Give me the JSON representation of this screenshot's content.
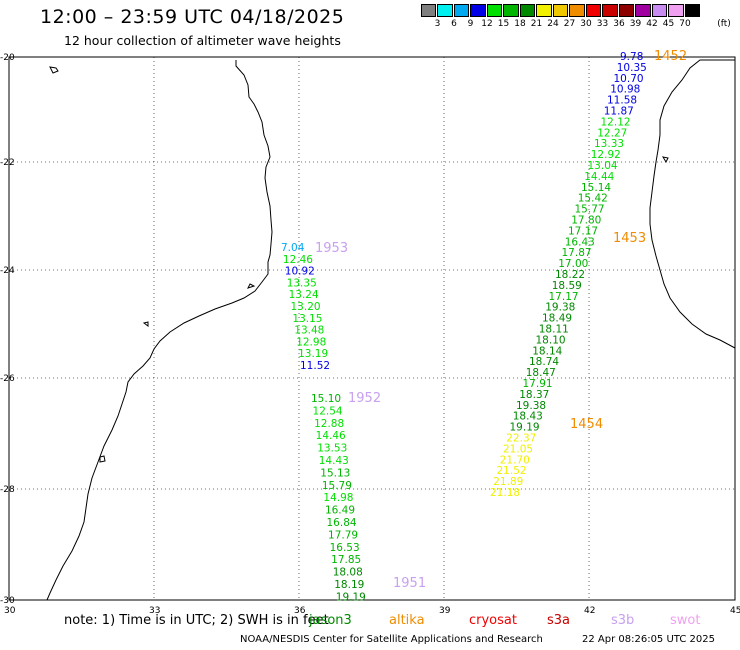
{
  "header": {
    "title": "12:00 – 23:59 UTC 04/18/2025",
    "subtitle": "12 hour collection of altimeter wave heights"
  },
  "legend": {
    "colors": [
      "#7f7f7f",
      "#00f0f0",
      "#00a8f0",
      "#0000e6",
      "#00e000",
      "#00b400",
      "#008800",
      "#f0f000",
      "#f0c800",
      "#f08c00",
      "#f00000",
      "#c80000",
      "#8c0000",
      "#a000a0",
      "#c88cf0",
      "#f0a0f0",
      "#000000"
    ],
    "labels": [
      "3",
      "6",
      "9",
      "12",
      "15",
      "18",
      "21",
      "24",
      "27",
      "30",
      "33",
      "36",
      "39",
      "42",
      "45",
      "70",
      "(ft)"
    ]
  },
  "axes": {
    "lat_ticks": [
      "-20",
      "-22",
      "-24",
      "-26",
      "-28",
      "-30"
    ],
    "lon_ticks": [
      "30",
      "33",
      "36",
      "39",
      "42",
      "45"
    ]
  },
  "colors": {
    "c6": "#00a8f0",
    "c12": "#0000e6",
    "c15": "#00e000",
    "c18": "#00b400",
    "c21": "#008800",
    "c24": "#f0f000",
    "pass_altika": "#f08c00",
    "pass_s3b": "#c8a0f0"
  },
  "tracks": [
    {
      "values": [
        {
          "v": "9.78",
          "c": "c12"
        },
        {
          "v": "10.35",
          "c": "c12"
        },
        {
          "v": "10.70",
          "c": "c12"
        },
        {
          "v": "10.98",
          "c": "c12"
        },
        {
          "v": "11.58",
          "c": "c12"
        },
        {
          "v": "11.87",
          "c": "c12"
        },
        {
          "v": "12.12",
          "c": "c15"
        },
        {
          "v": "12.27",
          "c": "c15"
        },
        {
          "v": "13.33",
          "c": "c15"
        },
        {
          "v": "12.92",
          "c": "c15"
        },
        {
          "v": "13.04",
          "c": "c15"
        },
        {
          "v": "14.44",
          "c": "c15"
        },
        {
          "v": "15.14",
          "c": "c18"
        },
        {
          "v": "15.42",
          "c": "c18"
        },
        {
          "v": "15.77",
          "c": "c18"
        },
        {
          "v": "17.80",
          "c": "c18"
        },
        {
          "v": "17.17",
          "c": "c18"
        },
        {
          "v": "16.43",
          "c": "c18"
        },
        {
          "v": "17.87",
          "c": "c18"
        },
        {
          "v": "17.00",
          "c": "c18"
        },
        {
          "v": "18.22",
          "c": "c21"
        },
        {
          "v": "18.59",
          "c": "c21"
        },
        {
          "v": "17.17",
          "c": "c18"
        },
        {
          "v": "19.38",
          "c": "c21"
        },
        {
          "v": "18.49",
          "c": "c21"
        },
        {
          "v": "18.11",
          "c": "c21"
        },
        {
          "v": "18.10",
          "c": "c21"
        },
        {
          "v": "18.14",
          "c": "c21"
        },
        {
          "v": "18.74",
          "c": "c21"
        },
        {
          "v": "18.47",
          "c": "c21"
        },
        {
          "v": "17.91",
          "c": "c18"
        },
        {
          "v": "18.37",
          "c": "c21"
        },
        {
          "v": "19.38",
          "c": "c21"
        },
        {
          "v": "18.43",
          "c": "c21"
        },
        {
          "v": "19.19",
          "c": "c21"
        },
        {
          "v": "22.37",
          "c": "c24"
        },
        {
          "v": "21.05",
          "c": "c24"
        },
        {
          "v": "21.70",
          "c": "c24"
        },
        {
          "v": "21.52",
          "c": "c24"
        },
        {
          "v": "21.89",
          "c": "c24"
        },
        {
          "v": "21.18",
          "c": "c24"
        }
      ]
    },
    {
      "values": [
        {
          "v": "7.04",
          "c": "c6"
        },
        {
          "v": "12.46",
          "c": "c15"
        },
        {
          "v": "10.92",
          "c": "c12"
        },
        {
          "v": "13.35",
          "c": "c15"
        },
        {
          "v": "13.24",
          "c": "c15"
        },
        {
          "v": "13.20",
          "c": "c15"
        },
        {
          "v": "13.15",
          "c": "c15"
        },
        {
          "v": "13.48",
          "c": "c15"
        },
        {
          "v": "12.98",
          "c": "c15"
        },
        {
          "v": "13.19",
          "c": "c15"
        },
        {
          "v": "11.52",
          "c": "c12"
        }
      ]
    },
    {
      "values": [
        {
          "v": "15.10",
          "c": "c18"
        },
        {
          "v": "12.54",
          "c": "c15"
        },
        {
          "v": "12.88",
          "c": "c15"
        },
        {
          "v": "14.46",
          "c": "c15"
        },
        {
          "v": "13.53",
          "c": "c15"
        },
        {
          "v": "14.43",
          "c": "c15"
        },
        {
          "v": "15.13",
          "c": "c18"
        },
        {
          "v": "15.79",
          "c": "c18"
        },
        {
          "v": "14.98",
          "c": "c15"
        },
        {
          "v": "16.49",
          "c": "c18"
        },
        {
          "v": "16.84",
          "c": "c18"
        },
        {
          "v": "17.79",
          "c": "c18"
        },
        {
          "v": "16.53",
          "c": "c18"
        },
        {
          "v": "17.85",
          "c": "c18"
        },
        {
          "v": "18.08",
          "c": "c21"
        },
        {
          "v": "18.19",
          "c": "c21"
        },
        {
          "v": "19.19",
          "c": "c21"
        }
      ]
    }
  ],
  "pass_times": [
    "1452",
    "1453",
    "1454",
    "1953",
    "1952",
    "1951"
  ],
  "footer": {
    "note": "note:  1) Time is in UTC;  2) SWH is in feet",
    "satellites": [
      "jason3",
      "altika",
      "cryosat",
      "s3a",
      "s3b",
      "swot"
    ],
    "sat_colors": [
      "#008800",
      "#f08c00",
      "#f00000",
      "#c80000",
      "#c8a0f0",
      "#f0a0f0"
    ],
    "credit": "NOAA/NESDIS Center for Satellite Applications and Research",
    "timestamp": "22 Apr 08:26:05 UTC 2025"
  }
}
